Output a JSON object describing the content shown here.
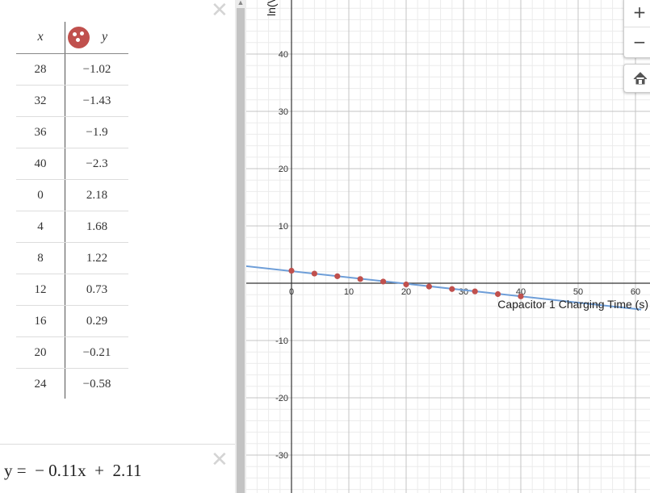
{
  "expressions": {
    "table": {
      "x_header": "x",
      "y_header": "y",
      "series_color": "#c0504d",
      "rows": [
        {
          "x": "28",
          "y": "−1.02"
        },
        {
          "x": "32",
          "y": "−1.43"
        },
        {
          "x": "36",
          "y": "−1.9"
        },
        {
          "x": "40",
          "y": "−2.3"
        },
        {
          "x": "0",
          "y": "2.18"
        },
        {
          "x": "4",
          "y": "1.68"
        },
        {
          "x": "8",
          "y": "1.22"
        },
        {
          "x": "12",
          "y": "0.73"
        },
        {
          "x": "16",
          "y": "0.29"
        },
        {
          "x": "20",
          "y": "−0.21"
        },
        {
          "x": "24",
          "y": "−0.58"
        }
      ]
    },
    "equation": {
      "text": "y =  − 0.11x  +  2.11",
      "color": "#6e9ed8"
    },
    "close_icon": "close-x-icon"
  },
  "graph": {
    "xlabel": "Capacitor 1 Charging Time (s)",
    "ylabel": "ln(V",
    "x_ticks": [
      {
        "v": 0,
        "t": "0"
      },
      {
        "v": 10,
        "t": "10"
      },
      {
        "v": 20,
        "t": "20"
      },
      {
        "v": 30,
        "t": "30"
      },
      {
        "v": 40,
        "t": "40"
      },
      {
        "v": 50,
        "t": "50"
      },
      {
        "v": 60,
        "t": "60"
      }
    ],
    "y_ticks": [
      {
        "v": 40,
        "t": "40"
      },
      {
        "v": 30,
        "t": "30"
      },
      {
        "v": 20,
        "t": "20"
      },
      {
        "v": 10,
        "t": "10"
      },
      {
        "v": -10,
        "t": "-10"
      },
      {
        "v": -20,
        "t": "-20"
      },
      {
        "v": -30,
        "t": "-30"
      }
    ],
    "zoom_in_label": "+",
    "zoom_out_label": "−",
    "home_icon": "home-icon"
  },
  "chart_data": {
    "type": "scatter",
    "x": [
      28,
      32,
      36,
      40,
      0,
      4,
      8,
      12,
      16,
      20,
      24
    ],
    "y": [
      -1.02,
      -1.43,
      -1.9,
      -2.3,
      2.18,
      1.68,
      1.22,
      0.73,
      0.29,
      -0.21,
      -0.58
    ],
    "fit": {
      "slope": -0.11,
      "intercept": 2.11
    },
    "xlabel": "Capacitor 1 Charging Time (s)",
    "ylabel": "ln(V",
    "xlim": [
      -9,
      61
    ],
    "ylim": [
      -36,
      49
    ],
    "grid": true,
    "point_color": "#c0504d",
    "line_color": "#6e9ed8"
  }
}
